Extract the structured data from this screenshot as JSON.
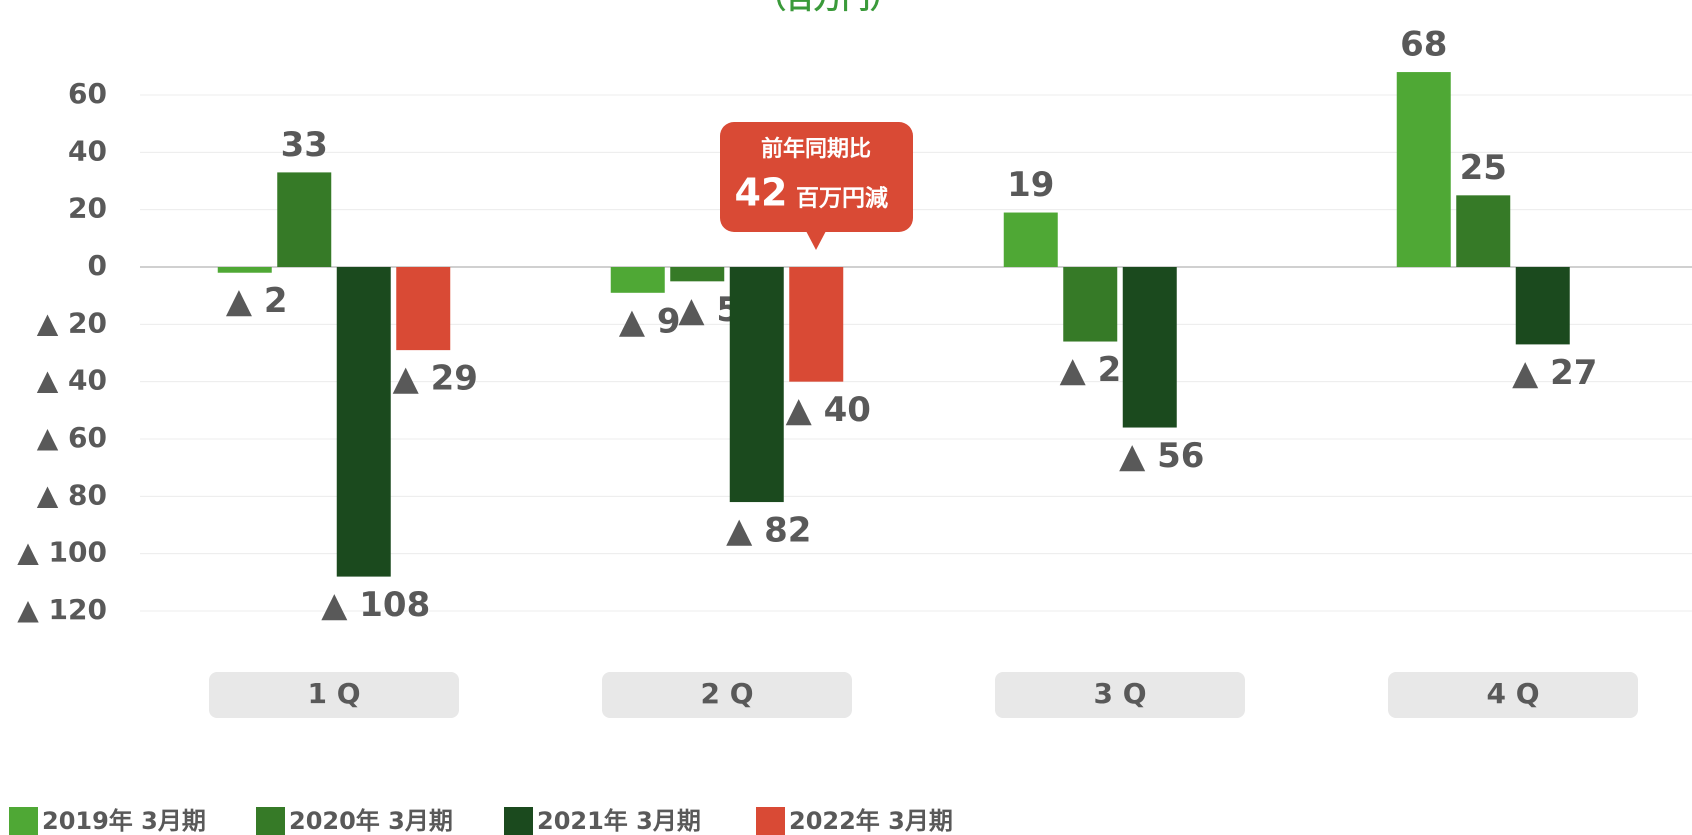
{
  "chart_data": {
    "type": "bar",
    "title": "（百万円）",
    "categories": [
      "1 Q",
      "2 Q",
      "3 Q",
      "4 Q"
    ],
    "series": [
      {
        "name": "2019年 3月期",
        "color": "#4fa835",
        "values": [
          -2,
          -9,
          19,
          68
        ],
        "value_labels": [
          "▲ 2",
          "▲ 9",
          "19",
          "68"
        ]
      },
      {
        "name": "2020年 3月期",
        "color": "#367a27",
        "values": [
          33,
          -5,
          -26,
          25
        ],
        "value_labels": [
          "33",
          "▲ 5",
          "▲ 26",
          "25"
        ]
      },
      {
        "name": "2021年 3月期",
        "color": "#1b4a1e",
        "values": [
          -108,
          -82,
          -56,
          -27
        ],
        "value_labels": [
          "▲ 108",
          "▲ 82",
          "▲ 56",
          "▲ 27"
        ]
      },
      {
        "name": "2022年 3月期",
        "color": "#d94a35",
        "values": [
          -29,
          -40,
          null,
          null
        ],
        "value_labels": [
          "▲ 29",
          "▲ 40",
          null,
          null
        ]
      }
    ],
    "ylim": [
      -120,
      60
    ],
    "yticks": [
      60,
      40,
      20,
      0,
      {
        "value": -20,
        "label": "▲ 20"
      },
      {
        "value": -40,
        "label": "▲ 40"
      },
      {
        "value": -60,
        "label": "▲ 60"
      },
      {
        "value": -80,
        "label": "▲ 80"
      },
      {
        "value": -100,
        "label": "▲ 100"
      },
      {
        "value": -120,
        "label": "▲ 120"
      }
    ],
    "grid": true,
    "annotation": {
      "line1": "前年同期比",
      "number": "42",
      "unit": "百万円減"
    }
  }
}
